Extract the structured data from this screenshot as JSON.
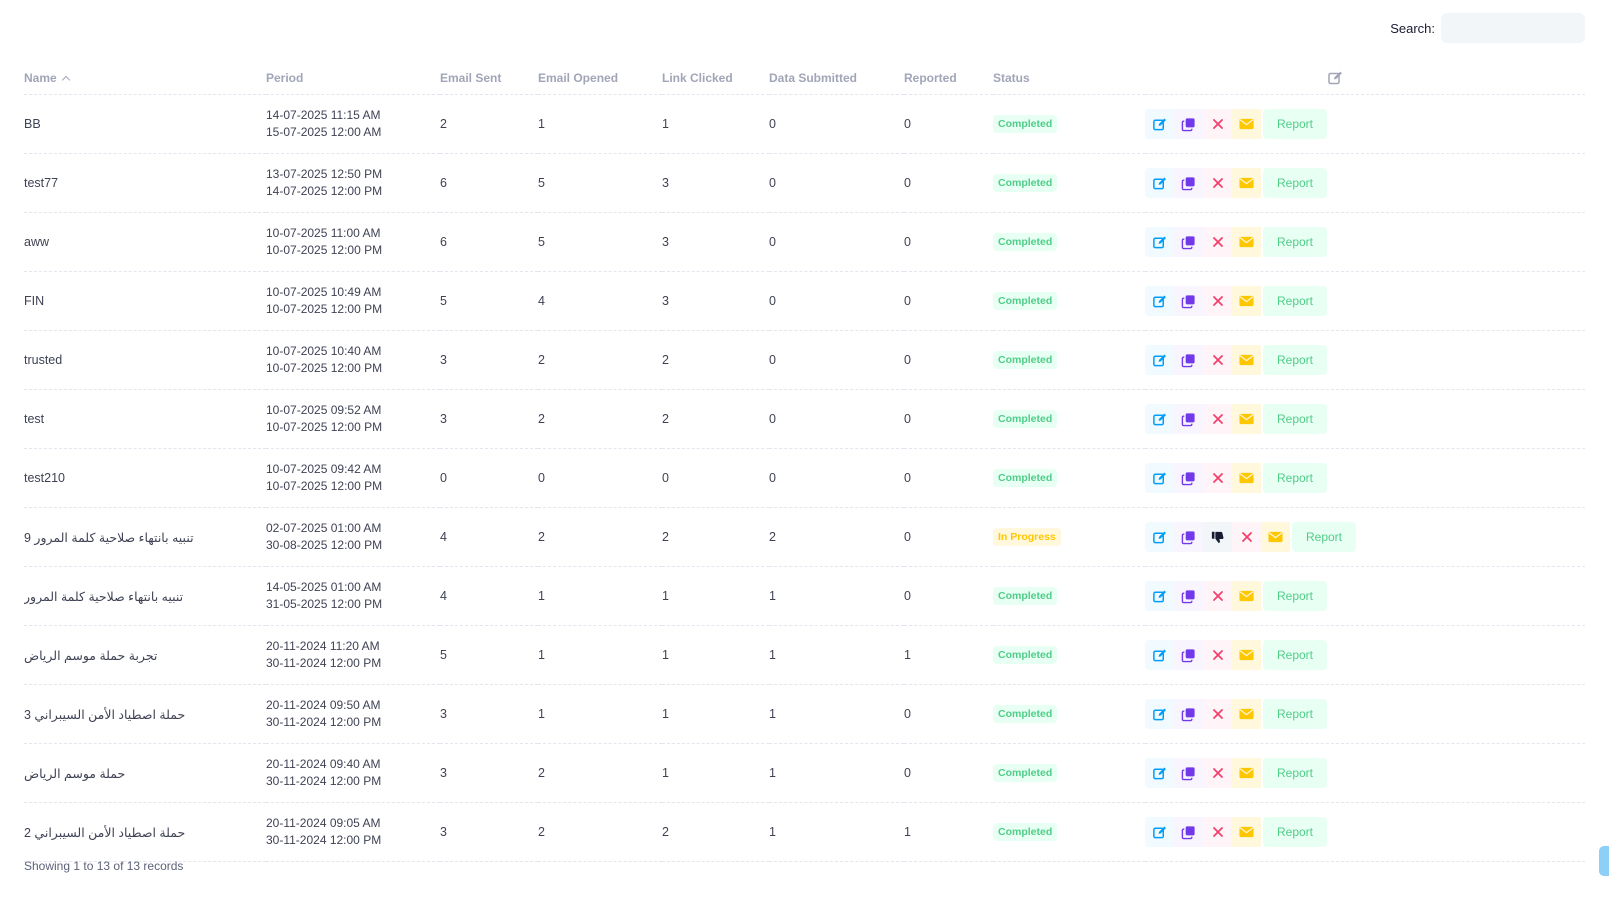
{
  "search": {
    "label": "Search:",
    "value": "",
    "placeholder": ""
  },
  "table": {
    "columns": {
      "name": "Name",
      "period": "Period",
      "email_sent": "Email Sent",
      "email_opened": "Email Opened",
      "link_clicked": "Link Clicked",
      "data_submitted": "Data Submitted",
      "reported": "Reported",
      "status": "Status"
    },
    "sort": {
      "column": "name",
      "direction": "ascending"
    },
    "report_label": "Report",
    "rows": [
      {
        "name": "BB",
        "period_start": "14-07-2025 11:15 AM",
        "period_end": "15-07-2025 12:00 AM",
        "email_sent": "2",
        "email_opened": "1",
        "link_clicked": "1",
        "data_submitted": "0",
        "reported": "0",
        "status": "Completed"
      },
      {
        "name": "test77",
        "period_start": "13-07-2025 12:50 PM",
        "period_end": "14-07-2025 12:00 PM",
        "email_sent": "6",
        "email_opened": "5",
        "link_clicked": "3",
        "data_submitted": "0",
        "reported": "0",
        "status": "Completed"
      },
      {
        "name": "aww",
        "period_start": "10-07-2025 11:00 AM",
        "period_end": "10-07-2025 12:00 PM",
        "email_sent": "6",
        "email_opened": "5",
        "link_clicked": "3",
        "data_submitted": "0",
        "reported": "0",
        "status": "Completed"
      },
      {
        "name": "FIN",
        "period_start": "10-07-2025 10:49 AM",
        "period_end": "10-07-2025 12:00 PM",
        "email_sent": "5",
        "email_opened": "4",
        "link_clicked": "3",
        "data_submitted": "0",
        "reported": "0",
        "status": "Completed"
      },
      {
        "name": "trusted",
        "period_start": "10-07-2025 10:40 AM",
        "period_end": "10-07-2025 12:00 PM",
        "email_sent": "3",
        "email_opened": "2",
        "link_clicked": "2",
        "data_submitted": "0",
        "reported": "0",
        "status": "Completed"
      },
      {
        "name": "test",
        "period_start": "10-07-2025 09:52 AM",
        "period_end": "10-07-2025 12:00 PM",
        "email_sent": "3",
        "email_opened": "2",
        "link_clicked": "2",
        "data_submitted": "0",
        "reported": "0",
        "status": "Completed"
      },
      {
        "name": "test210",
        "period_start": "10-07-2025 09:42 AM",
        "period_end": "10-07-2025 12:00 PM",
        "email_sent": "0",
        "email_opened": "0",
        "link_clicked": "0",
        "data_submitted": "0",
        "reported": "0",
        "status": "Completed"
      },
      {
        "name": "تنبيه بانتهاء صلاحية كلمة المرور 9",
        "period_start": "02-07-2025 01:00 AM",
        "period_end": "30-08-2025 12:00 PM",
        "email_sent": "4",
        "email_opened": "2",
        "link_clicked": "2",
        "data_submitted": "2",
        "reported": "0",
        "status": "In Progress",
        "show_dislike": true
      },
      {
        "name": "تنبيه بانتهاء صلاحية كلمة المرور",
        "period_start": "14-05-2025 01:00 AM",
        "period_end": "31-05-2025 12:00 PM",
        "email_sent": "4",
        "email_opened": "1",
        "link_clicked": "1",
        "data_submitted": "1",
        "reported": "0",
        "status": "Completed"
      },
      {
        "name": "تجربة حملة موسم الرياض",
        "period_start": "20-11-2024 11:20 AM",
        "period_end": "30-11-2024 12:00 PM",
        "email_sent": "5",
        "email_opened": "1",
        "link_clicked": "1",
        "data_submitted": "1",
        "reported": "1",
        "status": "Completed"
      },
      {
        "name": "حملة اصطياد الأمن السيبراني 3",
        "period_start": "20-11-2024 09:50 AM",
        "period_end": "30-11-2024 12:00 PM",
        "email_sent": "3",
        "email_opened": "1",
        "link_clicked": "1",
        "data_submitted": "1",
        "reported": "0",
        "status": "Completed"
      },
      {
        "name": "حملة موسم الرياض",
        "period_start": "20-11-2024 09:40 AM",
        "period_end": "30-11-2024 12:00 PM",
        "email_sent": "3",
        "email_opened": "2",
        "link_clicked": "1",
        "data_submitted": "1",
        "reported": "0",
        "status": "Completed"
      },
      {
        "name": "حملة اصطياد الأمن السيبراني 2",
        "period_start": "20-11-2024 09:05 AM",
        "period_end": "30-11-2024 12:00 PM",
        "email_sent": "3",
        "email_opened": "2",
        "link_clicked": "2",
        "data_submitted": "1",
        "reported": "1",
        "status": "Completed"
      }
    ]
  },
  "footer": {
    "info": "Showing 1 to 13 of 13 records"
  },
  "colors": {
    "edit": "#009ef7",
    "copy": "#7239ea",
    "delete": "#f1416c",
    "mail": "#ffc700",
    "report": "#50cd89",
    "dislike": "#181c32",
    "status_completed": "#50cd89",
    "status_in_progress": "#ffc700"
  },
  "icons": {
    "header_action": "edit-icon",
    "row_actions": [
      "edit-icon",
      "copy-icon",
      "dislike-icon",
      "close-icon",
      "envelope-icon"
    ]
  }
}
